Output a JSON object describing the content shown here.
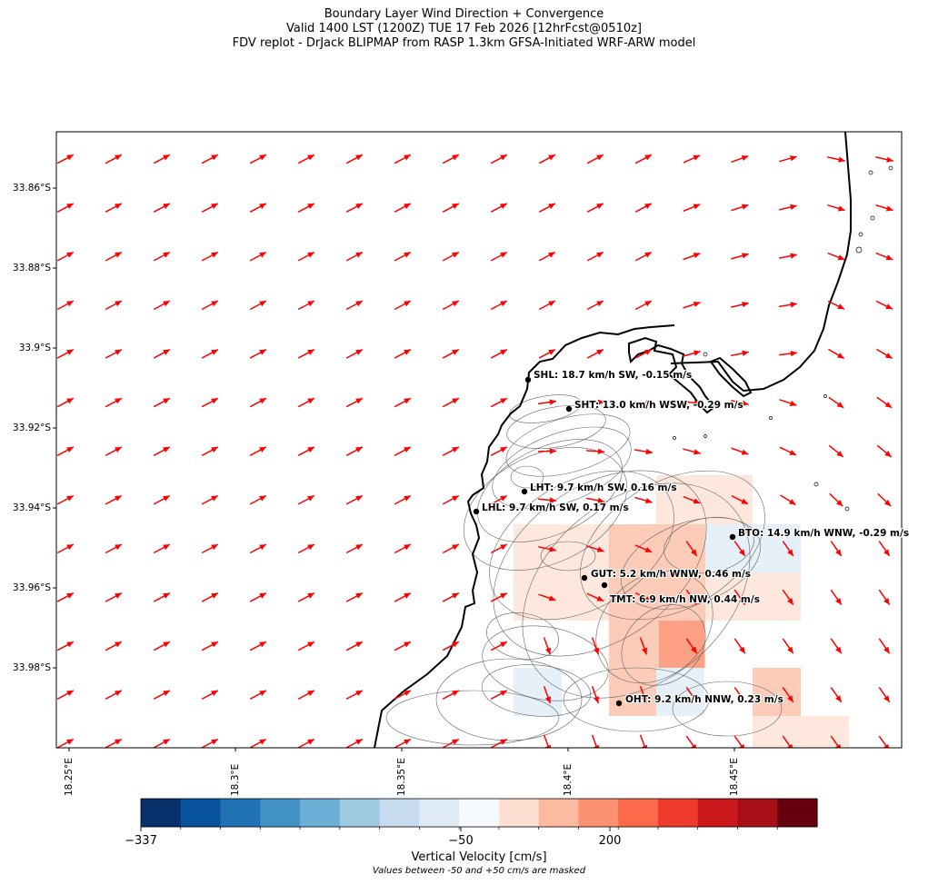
{
  "title": {
    "line1": "Boundary Layer Wind Direction + Convergence",
    "line2": "Valid 1400 LST (1200Z) TUE 17 Feb 2026 [12hrFcst@0510z]",
    "line3": "FDV replot - DrJack BLIPMAP from RASP 1.3km GFSA-Initiated WRF-ARW model"
  },
  "axes": {
    "lat_labels": [
      "33.86°S",
      "33.88°S",
      "33.9°S",
      "33.92°S",
      "33.94°S",
      "33.96°S",
      "33.98°S"
    ],
    "lon_labels": [
      "18.25°E",
      "18.3°E",
      "18.35°E",
      "18.4°E",
      "18.45°E"
    ]
  },
  "stations": [
    {
      "label": "SHL: 18.7 km/h SW, -0.15 m/s"
    },
    {
      "label": "SHT: 13.0 km/h WSW, -0.29 m/s"
    },
    {
      "label": "LHT: 9.7 km/h SW, 0.16 m/s"
    },
    {
      "label": "LHL: 9.7 km/h SW, 0.17 m/s"
    },
    {
      "label": "BTO: 14.9 km/h WNW, -0.29 m/s"
    },
    {
      "label": "GUT: 5.2 km/h WNW, 0.46 m/s"
    },
    {
      "label": "TMT: 6.9 km/h NW, 0.44 m/s"
    },
    {
      "label": "OHT: 9.2 km/h NNW, 0.23 m/s"
    }
  ],
  "colorbar": {
    "ticks": [
      "−337",
      "−50",
      "200"
    ],
    "label": "Vertical Velocity [cm/s]",
    "note": "Values between -50 and +50 cm/s are masked",
    "colors": [
      "#08306b",
      "#08519c",
      "#2171b5",
      "#4292c6",
      "#6baed6",
      "#9ecae1",
      "#c6dbef",
      "#deebf7",
      "#f7fbff",
      "#fee0d2",
      "#fcbba1",
      "#fc9272",
      "#fb6a4a",
      "#ef3b2c",
      "#cb181d",
      "#a50f15",
      "#67000d"
    ]
  },
  "vector_color": "#ff0000"
}
